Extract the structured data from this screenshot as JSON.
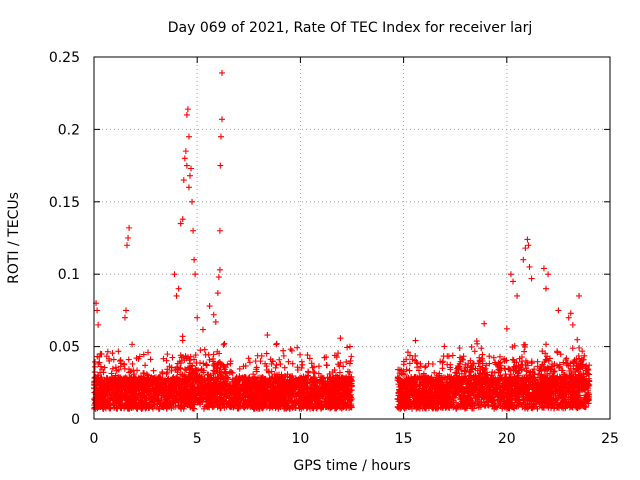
{
  "chart_data": {
    "type": "scatter",
    "title": "Day 069 of 2021, Rate Of TEC Index for receiver larj",
    "xlabel": "GPS time / hours",
    "ylabel": "ROTI / TECUs",
    "xlim": [
      0,
      25
    ],
    "ylim": [
      0,
      0.25
    ],
    "xticks": [
      0,
      5,
      10,
      15,
      20,
      25
    ],
    "xtick_labels": [
      "0",
      "5",
      "10",
      "15",
      "20",
      "25"
    ],
    "yticks": [
      0,
      0.05,
      0.1,
      0.15,
      0.2,
      0.25
    ],
    "ytick_labels": [
      "0",
      "0.05",
      "0.1",
      "0.15",
      "0.2",
      "0.25"
    ],
    "grid": true,
    "marker": "+",
    "color": "#ff0000",
    "data_coverage_hours": [
      [
        0,
        12.5
      ],
      [
        14.7,
        24
      ]
    ],
    "notable_points": {
      "x": [
        0.1,
        0.15,
        0.2,
        1.5,
        1.55,
        1.6,
        1.65,
        1.7,
        3.9,
        4.0,
        4.1,
        4.2,
        4.3,
        4.35,
        4.4,
        4.45,
        4.5,
        4.5,
        4.55,
        4.6,
        4.6,
        4.65,
        4.7,
        4.75,
        4.8,
        4.85,
        4.9,
        5.0,
        5.6,
        5.8,
        5.9,
        6.0,
        6.05,
        6.1,
        6.1,
        6.12,
        6.15,
        6.2,
        6.2,
        8.4,
        12.4,
        20.2,
        20.3,
        20.5,
        20.8,
        20.9,
        21.0,
        21.05,
        21.1,
        21.2,
        21.8,
        21.9,
        22.0,
        22.5,
        23.0,
        23.1,
        23.2,
        23.5
      ],
      "y": [
        0.08,
        0.075,
        0.065,
        0.07,
        0.075,
        0.12,
        0.125,
        0.132,
        0.1,
        0.085,
        0.09,
        0.135,
        0.138,
        0.165,
        0.18,
        0.185,
        0.175,
        0.21,
        0.214,
        0.195,
        0.16,
        0.168,
        0.173,
        0.15,
        0.13,
        0.11,
        0.1,
        0.07,
        0.078,
        0.072,
        0.067,
        0.087,
        0.098,
        0.103,
        0.13,
        0.175,
        0.195,
        0.207,
        0.239,
        0.058,
        0.05,
        0.1,
        0.095,
        0.085,
        0.11,
        0.118,
        0.124,
        0.12,
        0.105,
        0.097,
        0.104,
        0.09,
        0.1,
        0.075,
        0.07,
        0.073,
        0.065,
        0.085
      ]
    }
  }
}
